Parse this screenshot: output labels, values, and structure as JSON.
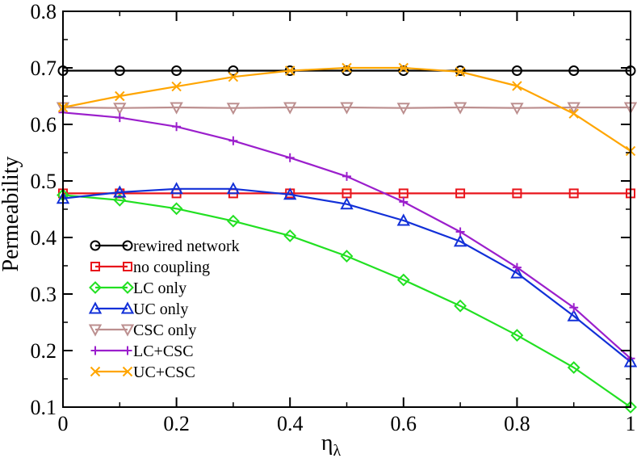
{
  "chart_data": {
    "type": "line",
    "title": "",
    "xlabel_main": "η",
    "xlabel_sub": "λ",
    "ylabel": "Permeability",
    "xlim": [
      0,
      1
    ],
    "ylim": [
      0.1,
      0.8
    ],
    "x_ticks": [
      "0",
      "0.2",
      "0.4",
      "0.6",
      "0.8",
      "1"
    ],
    "y_ticks": [
      "0.1",
      "0.2",
      "0.3",
      "0.4",
      "0.5",
      "0.6",
      "0.7",
      "0.8"
    ],
    "x_tick_values": [
      0,
      0.2,
      0.4,
      0.6,
      0.8,
      1.0
    ],
    "y_tick_values": [
      0.1,
      0.2,
      0.3,
      0.4,
      0.5,
      0.6,
      0.7,
      0.8
    ],
    "legend_position": "bottom-left",
    "x": [
      0,
      0.1,
      0.2,
      0.3,
      0.4,
      0.5,
      0.6,
      0.7,
      0.8,
      0.9,
      1.0
    ],
    "series": [
      {
        "name": "rewired network",
        "color": "#000000",
        "marker": "circle",
        "values": [
          0.695,
          0.695,
          0.695,
          0.695,
          0.695,
          0.695,
          0.695,
          0.695,
          0.695,
          0.695,
          0.695
        ]
      },
      {
        "name": "no coupling",
        "color": "#e8141b",
        "marker": "square",
        "values": [
          0.478,
          0.478,
          0.478,
          0.478,
          0.478,
          0.478,
          0.478,
          0.478,
          0.478,
          0.478,
          0.478
        ]
      },
      {
        "name": "LC only",
        "color": "#22e022",
        "marker": "diamond",
        "values": [
          0.475,
          0.466,
          0.451,
          0.429,
          0.403,
          0.367,
          0.325,
          0.279,
          0.227,
          0.17,
          0.1
        ]
      },
      {
        "name": "UC only",
        "color": "#1230d8",
        "marker": "triangle-up",
        "values": [
          0.469,
          0.48,
          0.486,
          0.486,
          0.476,
          0.459,
          0.43,
          0.393,
          0.337,
          0.261,
          0.18
        ]
      },
      {
        "name": "CSC only",
        "color": "#bc8f8f",
        "marker": "triangle-down",
        "values": [
          0.63,
          0.629,
          0.63,
          0.629,
          0.63,
          0.63,
          0.629,
          0.63,
          0.629,
          0.63,
          0.63
        ]
      },
      {
        "name": "LC+CSC",
        "color": "#9b1fcc",
        "marker": "plus",
        "values": [
          0.621,
          0.612,
          0.596,
          0.571,
          0.541,
          0.508,
          0.463,
          0.41,
          0.347,
          0.276,
          0.186
        ]
      },
      {
        "name": "UC+CSC",
        "color": "#ffa500",
        "marker": "x",
        "values": [
          0.63,
          0.65,
          0.667,
          0.684,
          0.695,
          0.7,
          0.7,
          0.693,
          0.668,
          0.619,
          0.553
        ]
      }
    ]
  }
}
